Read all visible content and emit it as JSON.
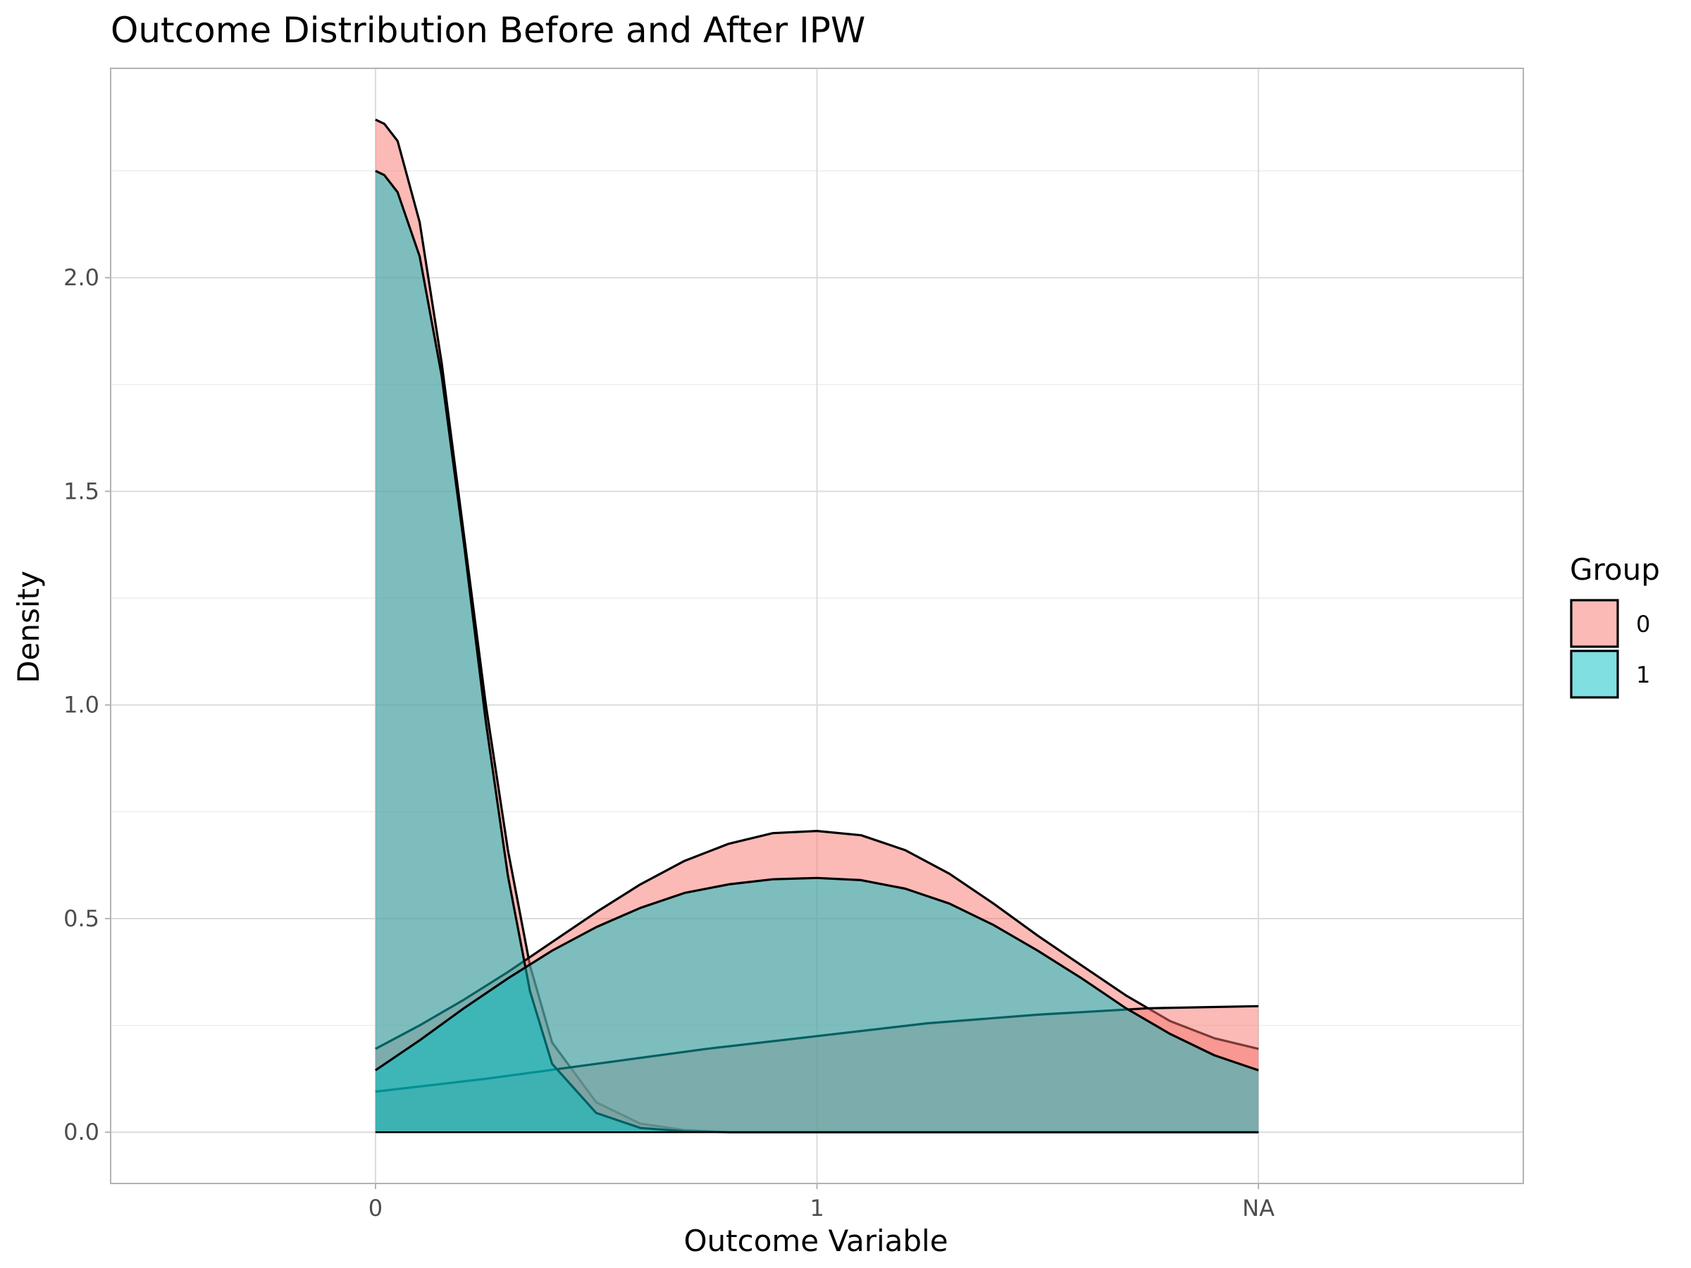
{
  "chart_data": {
    "type": "area",
    "title": "Outcome Distribution Before and After IPW",
    "xlabel": "Outcome Variable",
    "ylabel": "Density",
    "x_categories": [
      "0",
      "1",
      "NA"
    ],
    "xlim": [
      -0.6,
      2.6
    ],
    "ylim": [
      -0.12,
      2.49
    ],
    "y_ticks": [
      "0.0",
      "0.5",
      "1.0",
      "1.5",
      "2.0"
    ],
    "y_tick_values": [
      0,
      0.5,
      1.0,
      1.5,
      2.0
    ],
    "grid": true,
    "legend": {
      "title": "Group",
      "position": "right",
      "entries": [
        {
          "label": "0",
          "color": "#f8766d"
        },
        {
          "label": "1",
          "color": "#00bfc4"
        }
      ]
    },
    "series": [
      {
        "group": "0",
        "color": "#f8766d",
        "x": [
          0,
          0.02,
          0.05,
          0.1,
          0.15,
          0.2,
          0.25,
          0.3,
          0.35,
          0.4,
          0.5,
          0.6,
          0.7,
          0.8,
          1.0,
          1.2,
          1.4,
          1.6,
          1.8,
          2.0
        ],
        "y": [
          2.37,
          2.36,
          2.32,
          2.13,
          1.8,
          1.4,
          1.0,
          0.66,
          0.39,
          0.21,
          0.07,
          0.02,
          0.005,
          0.0,
          0.0,
          0.0,
          0.0,
          0.0,
          0.0,
          0.0
        ]
      },
      {
        "group": "0",
        "color": "#f8766d",
        "x": [
          0,
          0.1,
          0.2,
          0.3,
          0.4,
          0.5,
          0.6,
          0.7,
          0.8,
          0.9,
          1.0,
          1.1,
          1.2,
          1.3,
          1.4,
          1.5,
          1.6,
          1.7,
          1.8,
          1.9,
          2.0
        ],
        "y": [
          0.195,
          0.25,
          0.31,
          0.375,
          0.445,
          0.515,
          0.58,
          0.635,
          0.675,
          0.7,
          0.705,
          0.695,
          0.66,
          0.605,
          0.535,
          0.46,
          0.39,
          0.32,
          0.26,
          0.22,
          0.195
        ]
      },
      {
        "group": "0",
        "color": "#f8766d",
        "x": [
          0,
          0.25,
          0.5,
          0.75,
          1.0,
          1.25,
          1.5,
          1.75,
          2.0
        ],
        "y": [
          0.095,
          0.125,
          0.16,
          0.195,
          0.225,
          0.255,
          0.275,
          0.29,
          0.295
        ]
      },
      {
        "group": "1",
        "color": "#00bfc4",
        "x": [
          0,
          0.02,
          0.05,
          0.1,
          0.15,
          0.2,
          0.25,
          0.3,
          0.35,
          0.4,
          0.5,
          0.6,
          0.7,
          0.8,
          1.0,
          1.2,
          1.4,
          1.6,
          1.8,
          2.0
        ],
        "y": [
          2.25,
          2.24,
          2.2,
          2.05,
          1.77,
          1.38,
          0.96,
          0.6,
          0.33,
          0.16,
          0.045,
          0.01,
          0.002,
          0.0,
          0.0,
          0.0,
          0.0,
          0.0,
          0.0,
          0.0
        ]
      },
      {
        "group": "1",
        "color": "#00bfc4",
        "x": [
          0,
          0.1,
          0.2,
          0.3,
          0.4,
          0.5,
          0.6,
          0.7,
          0.8,
          0.9,
          1.0,
          1.1,
          1.2,
          1.3,
          1.4,
          1.5,
          1.6,
          1.7,
          1.8,
          1.9,
          2.0
        ],
        "y": [
          0.145,
          0.215,
          0.29,
          0.36,
          0.425,
          0.48,
          0.525,
          0.56,
          0.58,
          0.592,
          0.595,
          0.59,
          0.57,
          0.535,
          0.485,
          0.425,
          0.36,
          0.29,
          0.23,
          0.18,
          0.145
        ]
      }
    ]
  }
}
